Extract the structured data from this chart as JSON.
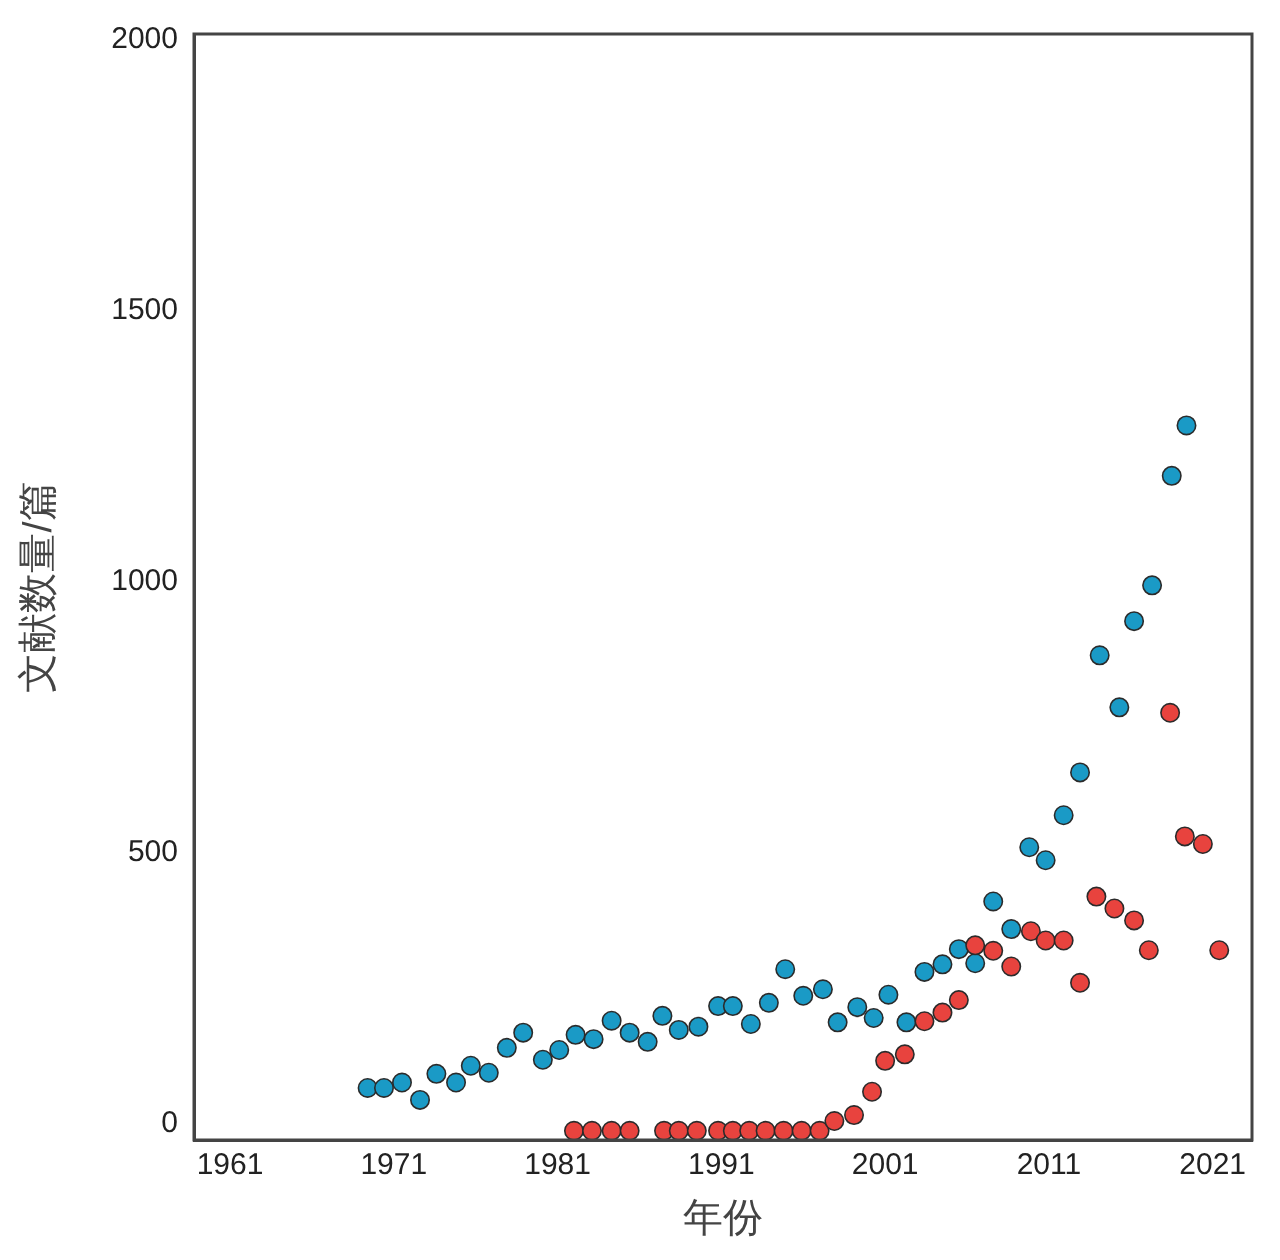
{
  "chart_data": {
    "type": "scatter",
    "xlabel": "年份",
    "ylabel": "文献数量/篇",
    "xlim": [
      1958.8,
      2023.4
    ],
    "ylim": [
      -30,
      2010
    ],
    "xticks": [
      1961,
      1971,
      1981,
      1991,
      2001,
      2011,
      2021
    ],
    "yticks": [
      0,
      500,
      1000,
      1500,
      2000
    ],
    "grid": false,
    "legend": false,
    "marker": "circle",
    "series": [
      {
        "color": "#e8433e",
        "x": [
          1982.0,
          1983.1,
          1984.3,
          1985.4,
          1987.5,
          1988.4,
          1989.5,
          1990.8,
          1991.7,
          1992.7,
          1993.7,
          1994.8,
          1995.9,
          1997.0,
          1997.9,
          1999.1,
          2000.2,
          2001.0,
          2002.2,
          2003.4,
          2004.5,
          2005.5,
          2006.5,
          2007.6,
          2008.7,
          2009.9,
          2010.8,
          2011.9,
          2012.9,
          2013.9,
          2015.0,
          2016.2,
          2017.1,
          2018.4,
          2019.3,
          2020.4,
          2021.4
        ],
        "values": [
          -13,
          -13,
          -13,
          -13,
          -13,
          -13,
          -13,
          -13,
          -13,
          -13,
          -13,
          -13,
          -13,
          -13,
          5,
          16,
          59,
          116,
          128,
          189,
          205,
          228,
          329,
          319,
          290,
          355,
          338,
          338,
          260,
          419,
          397,
          375,
          320,
          758,
          530,
          516,
          320
        ]
      },
      {
        "color": "#1a9ac6",
        "x": [
          1969.4,
          1970.4,
          1971.5,
          1972.6,
          1973.6,
          1974.8,
          1975.7,
          1976.8,
          1977.9,
          1978.9,
          1980.1,
          1981.1,
          1982.1,
          1983.2,
          1984.3,
          1985.4,
          1986.5,
          1987.4,
          1988.4,
          1989.6,
          1990.8,
          1991.7,
          1992.8,
          1993.9,
          1994.9,
          1996.0,
          1997.2,
          1998.1,
          1999.3,
          2000.3,
          2001.2,
          2002.3,
          2003.4,
          2004.5,
          2005.5,
          2006.5,
          2007.6,
          2008.7,
          2009.8,
          2010.8,
          2011.9,
          2012.9,
          2014.1,
          2015.3,
          2016.2,
          2017.3,
          2018.5,
          2019.4
        ],
        "values": [
          66,
          66,
          76,
          44,
          92,
          76,
          107,
          94,
          140,
          168,
          118,
          136,
          164,
          156,
          190,
          168,
          151,
          199,
          173,
          179,
          217,
          217,
          184,
          223,
          285,
          236,
          248,
          187,
          215,
          195,
          238,
          187,
          280,
          294,
          322,
          296,
          410,
          359,
          510,
          486,
          569,
          648,
          864,
          768,
          927,
          993,
          1195,
          1288
        ]
      }
    ]
  }
}
